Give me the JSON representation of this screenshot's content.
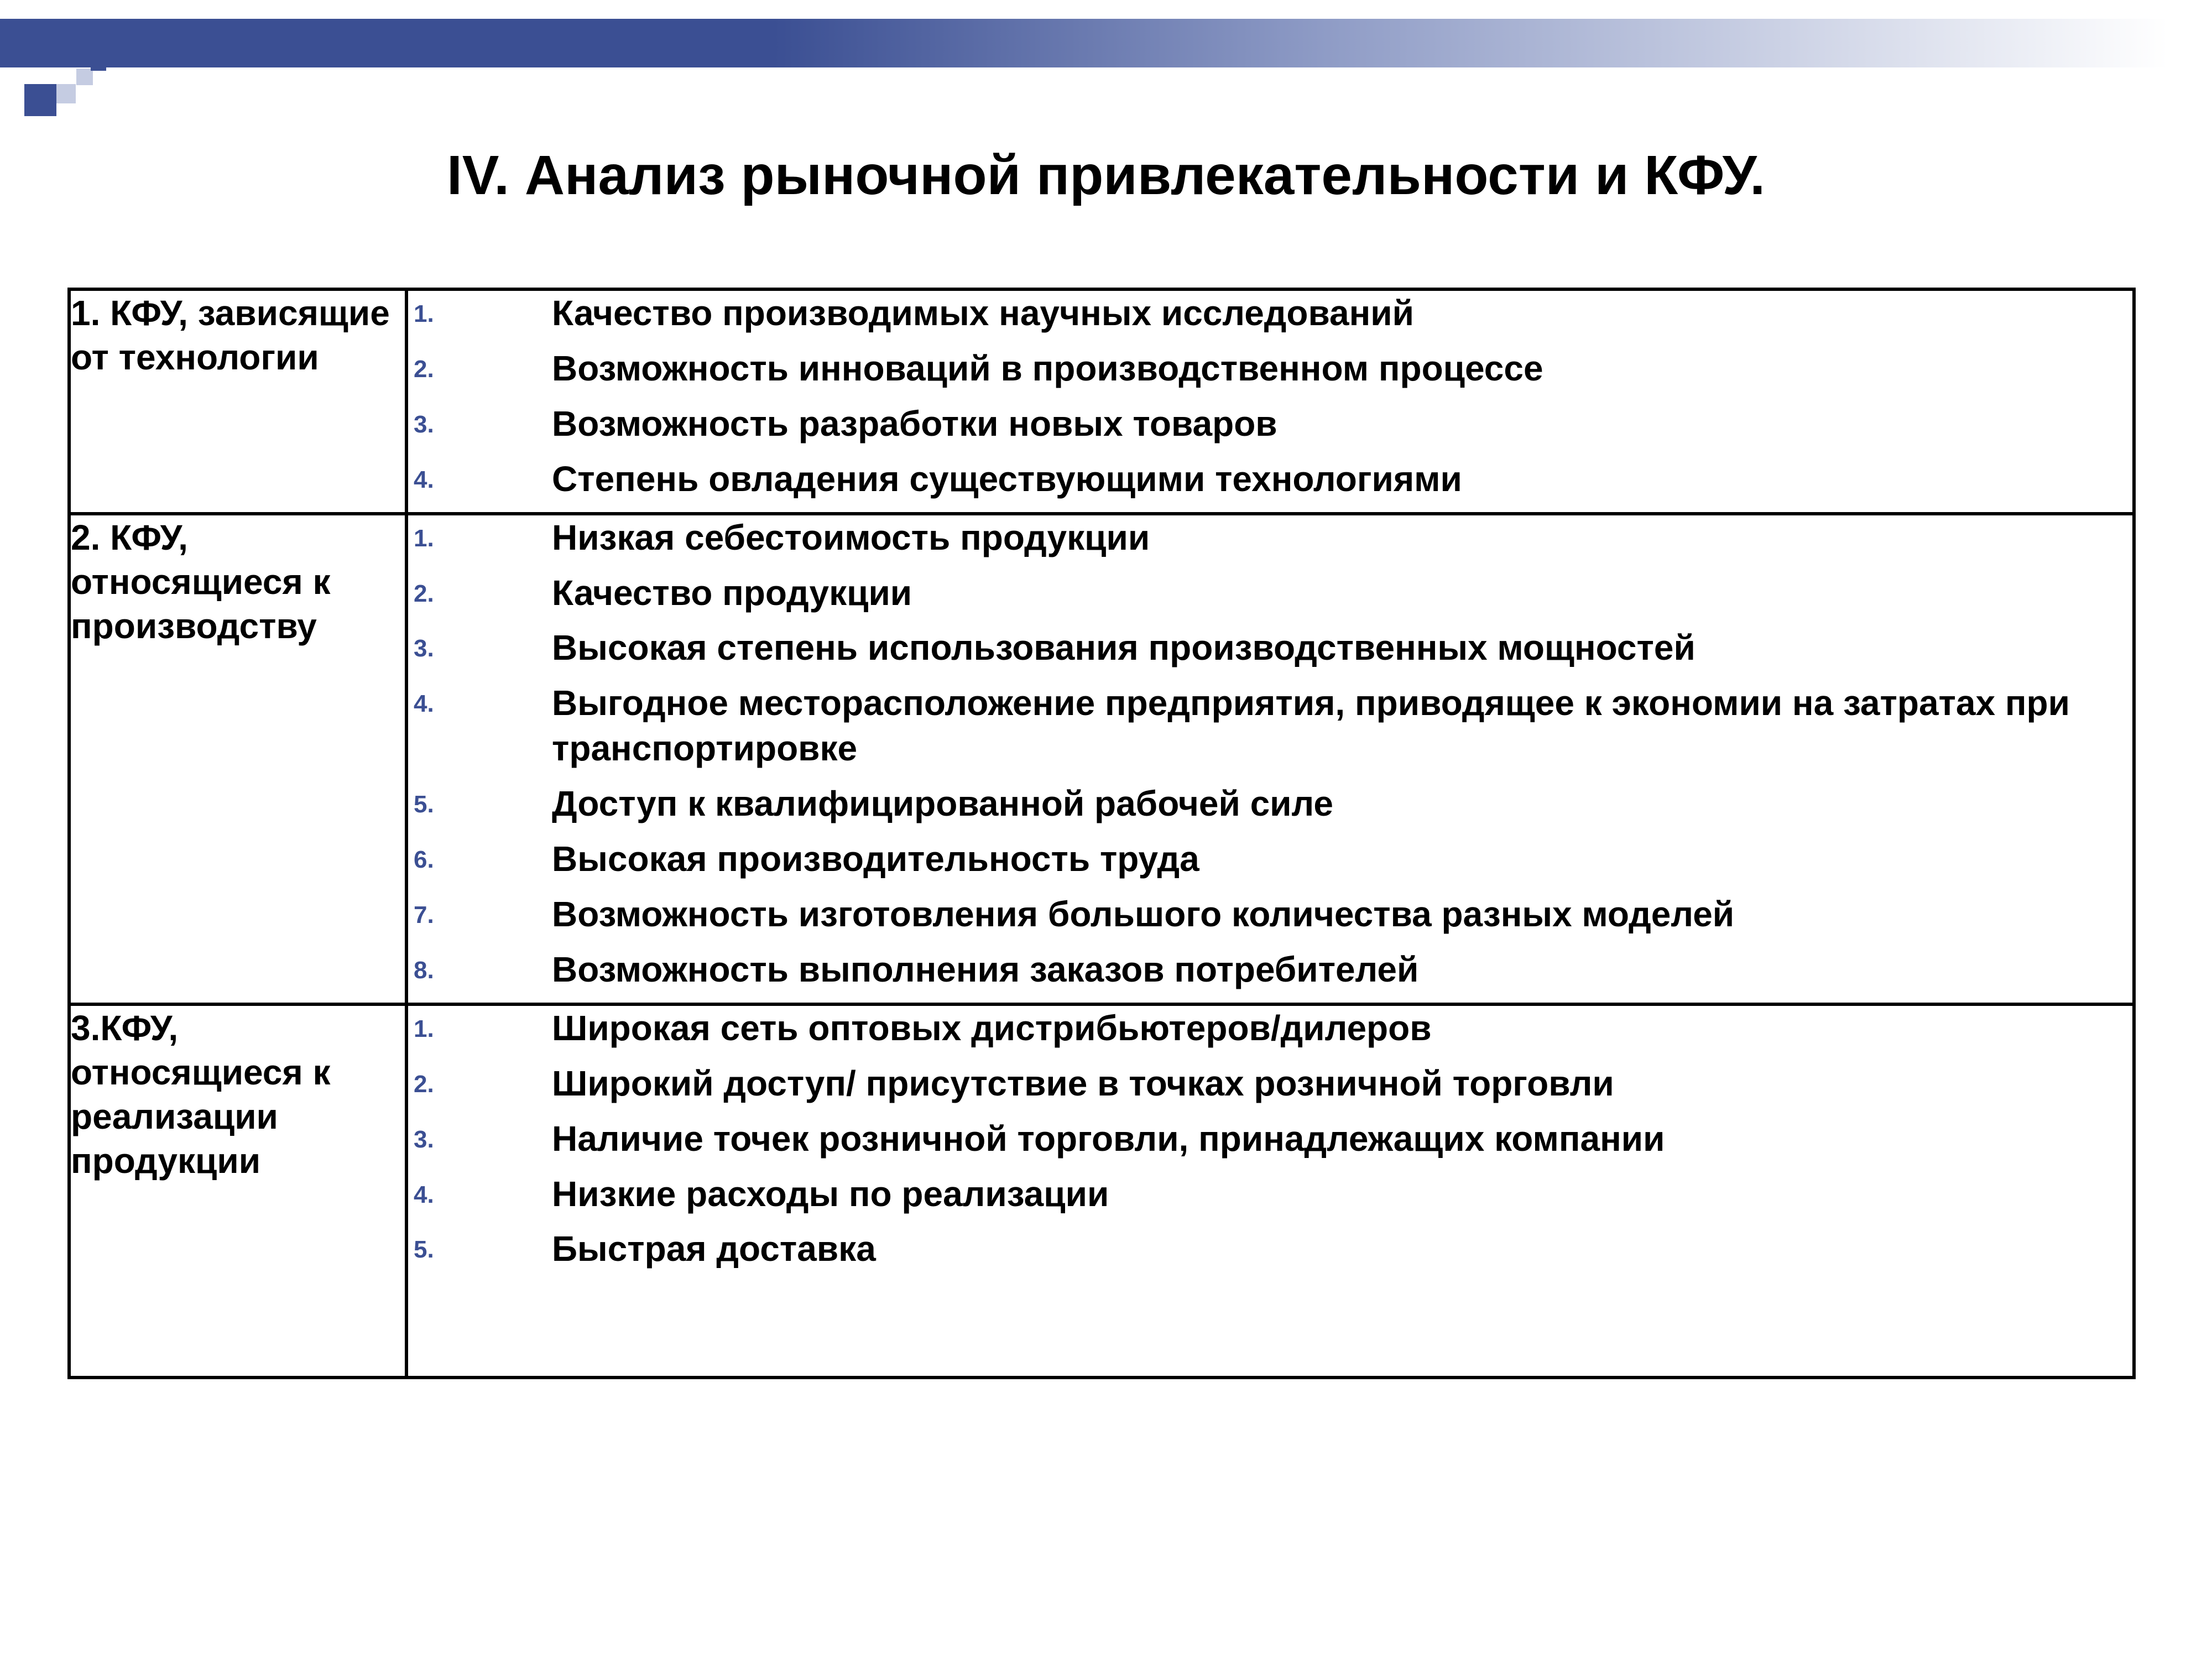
{
  "colors": {
    "accent": "#3b4f93",
    "accent_light": "#c5cce2",
    "text": "#000000",
    "background": "#ffffff"
  },
  "title": "IV. Анализ рыночной привлекательности и КФУ.",
  "table": {
    "rows": [
      {
        "label": "1. КФУ, зависящие от технологии",
        "items": [
          "Качество производимых научных исследований",
          "Возможность инноваций в производственном процессе",
          "Возможность разработки новых товаров",
          "Степень овладения существующими технологиями"
        ]
      },
      {
        "label": "2. КФУ, относящиеся к производству",
        "items": [
          "Низкая себестоимость продукции",
          "Качество продукции",
          "Высокая степень использования производственных мощностей",
          "Выгодное месторасположение предприятия, приводящее к экономии на затратах при транспортировке",
          "Доступ к квалифицированной рабочей силе",
          "Высокая производительность труда",
          "Возможность изготовления большого количества разных моделей",
          "Возможность выполнения заказов потребителей"
        ]
      },
      {
        "label": "3.КФУ, относящиеся к реализации продукции",
        "items": [
          "Широкая сеть оптовых дистрибьютеров/дилеров",
          "Широкий доступ/ присутствие в точках розничной торговли",
          "Наличие точек розничной торговли, принадлежащих компании",
          "Низкие расходы по реализации",
          "Быстрая доставка"
        ]
      }
    ]
  }
}
